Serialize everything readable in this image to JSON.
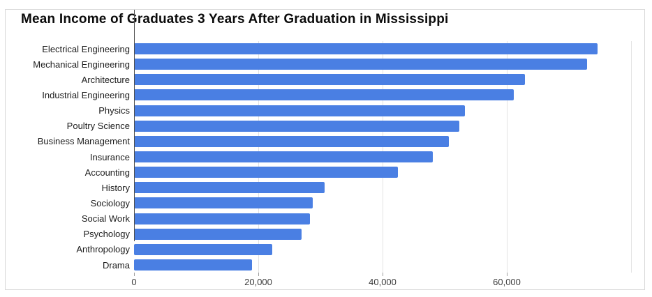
{
  "title": "Mean Income of Graduates 3 Years After Graduation in Mississippi",
  "colors": {
    "bar": "#4a7fe3",
    "grid": "#e3e3e3",
    "zero_line": "#4d4d4d",
    "tick_mark": "#9e9e9e",
    "axis_label": "#3c3c3c",
    "category_label": "#1c1c1c",
    "panel_border": "#d9d9d9",
    "title_color": "#0b0b0b"
  },
  "chart_data": {
    "type": "bar",
    "orientation": "horizontal",
    "title": "Mean Income of Graduates 3 Years After Graduation in Mississippi",
    "categories": [
      "Electrical Engineering",
      "Mechanical Engineering",
      "Architecture",
      "Industrial Engineering",
      "Physics",
      "Poultry Science",
      "Business Management",
      "Insurance",
      "Accounting",
      "History",
      "Sociology",
      "Social Work",
      "Psychology",
      "Anthropology",
      "Drama"
    ],
    "values": [
      74600,
      72900,
      62900,
      61100,
      53300,
      52400,
      50700,
      48100,
      42500,
      30700,
      28800,
      28300,
      27000,
      22200,
      19000
    ],
    "xlabel": "",
    "ylabel": "",
    "xlim": [
      0,
      80000
    ],
    "x_ticks": [
      {
        "value": 0,
        "label": "0"
      },
      {
        "value": 20000,
        "label": "20,000"
      },
      {
        "value": 40000,
        "label": "40,000"
      },
      {
        "value": 60000,
        "label": "60,000"
      }
    ],
    "gridline_values": [
      20000,
      40000,
      60000,
      80000
    ],
    "grid": true,
    "legend": "none"
  }
}
